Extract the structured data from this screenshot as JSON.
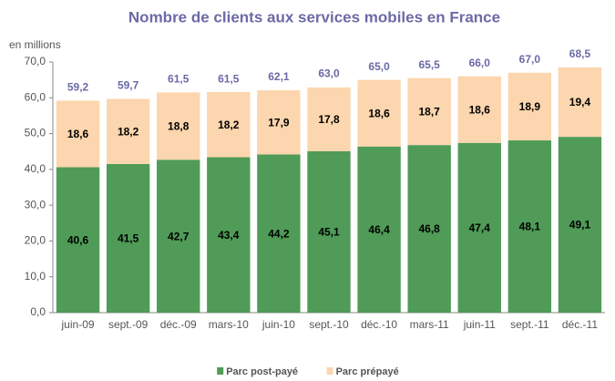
{
  "chart_data": {
    "type": "stacked_bar",
    "title": "Nombre de clients aux services mobiles en France",
    "y_label": "en millions",
    "categories": [
      "juin-09",
      "sept.-09",
      "déc.-09",
      "mars-10",
      "juin-10",
      "sept.-10",
      "déc.-10",
      "mars-11",
      "juin-11",
      "sept.-11",
      "déc.-11"
    ],
    "series": [
      {
        "name": "Parc post-payé",
        "color": "#4f9b57",
        "values": [
          40.6,
          41.5,
          42.7,
          43.4,
          44.2,
          45.1,
          46.4,
          46.8,
          47.4,
          48.1,
          49.1
        ],
        "value_labels": [
          "40,6",
          "41,5",
          "42,7",
          "43,4",
          "44,2",
          "45,1",
          "46,4",
          "46,8",
          "47,4",
          "48,1",
          "49,1"
        ]
      },
      {
        "name": "Parc prépayé",
        "color": "#fcd6ae",
        "values": [
          18.6,
          18.2,
          18.8,
          18.2,
          17.9,
          17.8,
          18.6,
          18.7,
          18.6,
          18.9,
          19.4
        ],
        "value_labels": [
          "18,6",
          "18,2",
          "18,8",
          "18,2",
          "17,9",
          "17,8",
          "18,6",
          "18,7",
          "18,6",
          "18,9",
          "19,4"
        ]
      }
    ],
    "totals": [
      59.2,
      59.7,
      61.5,
      61.5,
      62.1,
      63.0,
      65.0,
      65.5,
      66.0,
      67.0,
      68.5
    ],
    "total_labels": [
      "59,2",
      "59,7",
      "61,5",
      "61,5",
      "62,1",
      "63,0",
      "65,0",
      "65,5",
      "66,0",
      "67,0",
      "68,5"
    ],
    "ylim": [
      0,
      70
    ],
    "yticks": [
      {
        "value": 0,
        "label": "0,0"
      },
      {
        "value": 10,
        "label": "10,0"
      },
      {
        "value": 20,
        "label": "20,0"
      },
      {
        "value": 30,
        "label": "30,0"
      },
      {
        "value": 40,
        "label": "40,0"
      },
      {
        "value": 50,
        "label": "50,0"
      },
      {
        "value": 60,
        "label": "60,0"
      },
      {
        "value": 70,
        "label": "70,0"
      }
    ],
    "grid": false,
    "legend": "bottom"
  }
}
